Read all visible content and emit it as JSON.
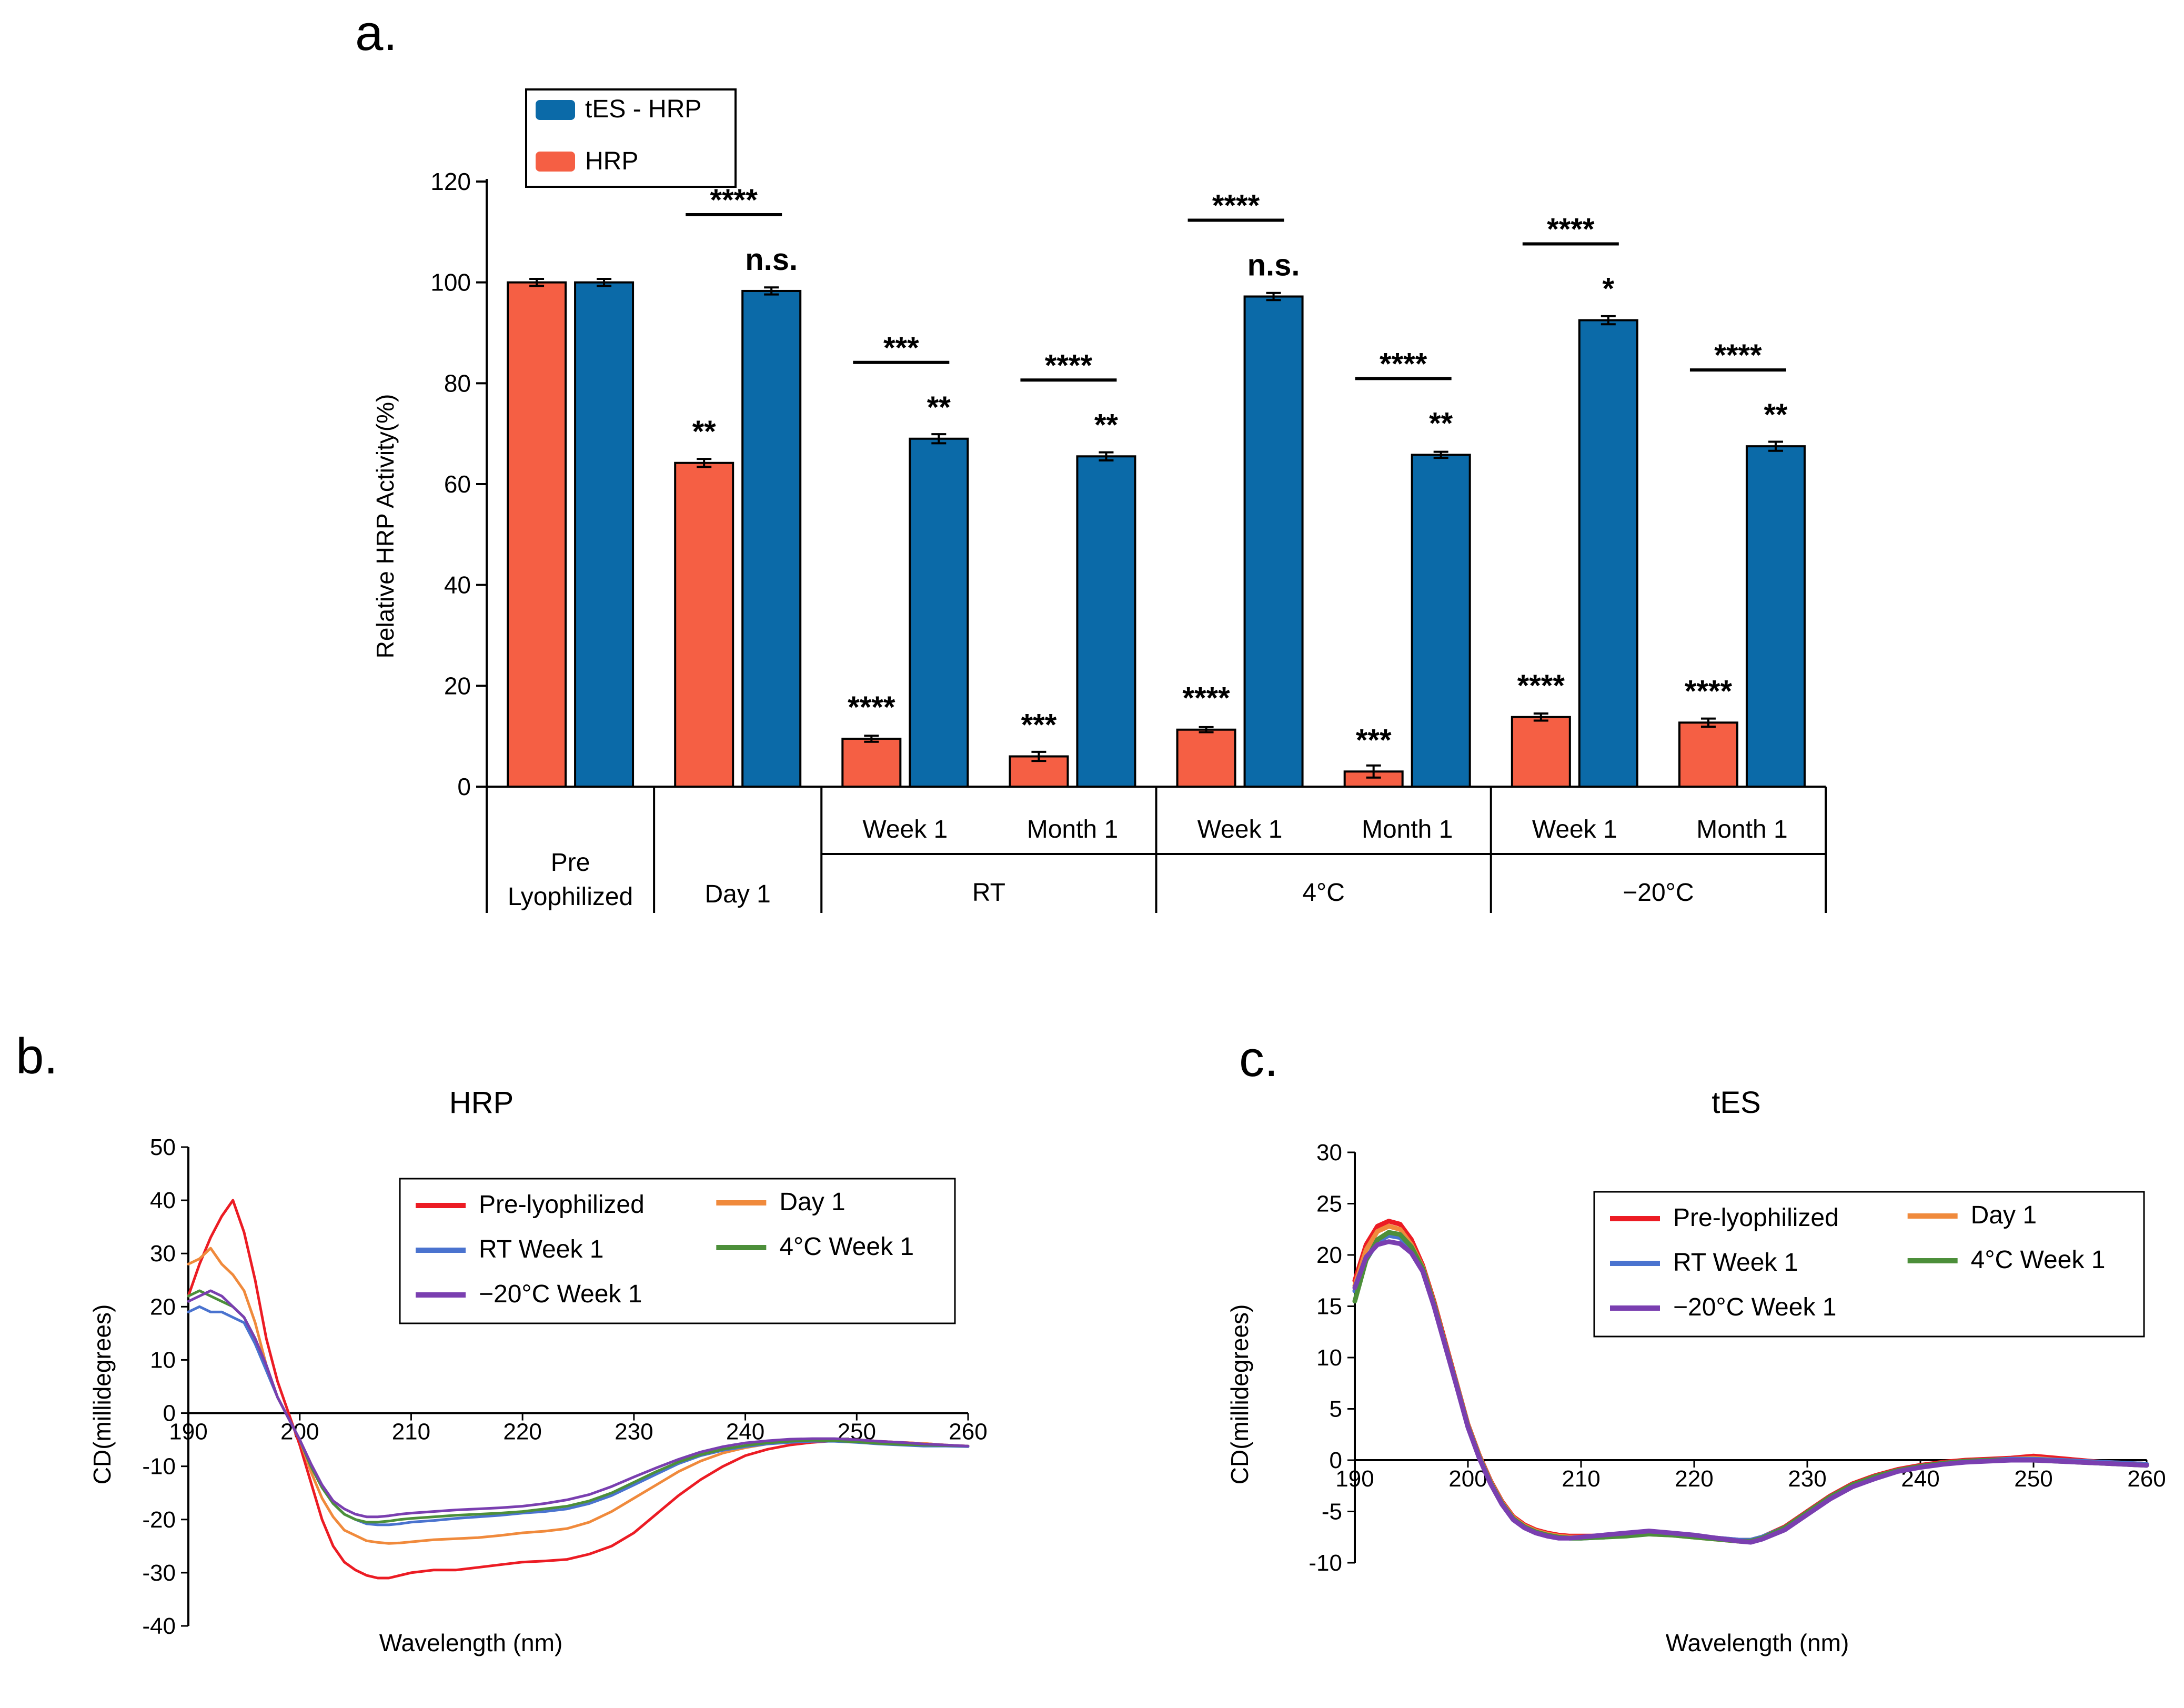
{
  "chart_data": [
    {
      "panel": "a.",
      "type": "bar",
      "title": "",
      "ylabel": "Relative HRP Activity(%)",
      "ylim": [
        0,
        120
      ],
      "yticks": [
        0,
        20,
        40,
        60,
        80,
        100,
        120
      ],
      "legend": {
        "placement": "top-left",
        "entries": [
          "tES - HRP",
          "HRP"
        ]
      },
      "series": [
        {
          "name": "tES - HRP",
          "color": "#0b6aa8",
          "values": [
            100,
            98.3,
            69,
            65.5,
            97.2,
            65.8,
            92.5,
            67.5
          ],
          "errors": [
            0.7,
            0.7,
            0.9,
            0.8,
            0.7,
            0.6,
            0.8,
            0.9
          ],
          "sig": [
            "",
            "n.s.",
            "**",
            "**",
            "n.s.",
            "**",
            "*",
            "**"
          ]
        },
        {
          "name": "HRP",
          "color": "#f55f44",
          "values": [
            100,
            64.2,
            9.5,
            6,
            11.3,
            3,
            13.8,
            12.7
          ],
          "errors": [
            0.7,
            0.8,
            0.6,
            0.9,
            0.5,
            1.2,
            0.7,
            0.8
          ],
          "sig": [
            "",
            "**",
            "****",
            "***",
            "****",
            "***",
            "****",
            "****"
          ]
        }
      ],
      "comparisons": [
        "",
        "****",
        "***",
        "****",
        "****",
        "****",
        "****",
        "****"
      ],
      "time_labels": [
        "",
        "",
        "Week 1",
        "Month 1",
        "Week 1",
        "Month 1",
        "Week 1",
        "Month 1"
      ],
      "groups": [
        "Pre Lyophilized",
        "Day 1",
        "RT",
        "4°C",
        "−20°C"
      ]
    },
    {
      "panel": "b.",
      "type": "line",
      "title": "HRP",
      "xlabel": "Wavelength (nm)",
      "ylabel": "CD(millidegrees)",
      "xlim": [
        190,
        260
      ],
      "ylim": [
        -40,
        50
      ],
      "xticks": [
        190,
        200,
        210,
        220,
        230,
        240,
        250,
        260
      ],
      "yticks": [
        -40,
        -30,
        -20,
        -10,
        0,
        10,
        20,
        30,
        40,
        50
      ],
      "legend": {
        "placement": "top-right",
        "entries": [
          "Pre-lyophilized",
          "Day 1",
          "RT Week 1",
          "4°C Week 1",
          "−20°C Week 1"
        ]
      },
      "x": [
        190,
        191,
        192,
        193,
        194,
        195,
        196,
        197,
        198,
        199,
        200,
        201,
        202,
        203,
        204,
        205,
        206,
        207,
        208,
        209,
        210,
        212,
        214,
        216,
        218,
        220,
        222,
        224,
        226,
        228,
        230,
        232,
        234,
        236,
        238,
        240,
        242,
        244,
        246,
        248,
        250,
        252,
        254,
        256,
        258,
        260
      ],
      "series": [
        {
          "name": "Pre-lyophilized",
          "color": "#ec1c24",
          "values": [
            22,
            28,
            33,
            37,
            40,
            34,
            25,
            14,
            6,
            0,
            -6,
            -13,
            -20,
            -25,
            -28,
            -29.5,
            -30.5,
            -31,
            -31,
            -30.5,
            -30,
            -29.5,
            -29.5,
            -29,
            -28.5,
            -28,
            -27.8,
            -27.5,
            -26.5,
            -25,
            -22.5,
            -19,
            -15.5,
            -12.5,
            -10,
            -8,
            -6.8,
            -6,
            -5.5,
            -5.2,
            -5,
            -5.3,
            -5.5,
            -5.7,
            -6,
            -6.2
          ]
        },
        {
          "name": "Day 1",
          "color": "#f08a3c",
          "values": [
            28,
            29,
            31,
            28,
            26,
            23,
            17,
            9,
            3,
            -1,
            -5,
            -11,
            -16,
            -19.5,
            -22,
            -23,
            -24,
            -24.3,
            -24.5,
            -24.4,
            -24.2,
            -23.8,
            -23.6,
            -23.4,
            -23,
            -22.5,
            -22.2,
            -21.7,
            -20.5,
            -18.5,
            -16,
            -13.5,
            -11,
            -9,
            -7.5,
            -6.5,
            -5.8,
            -5.3,
            -5,
            -4.9,
            -5,
            -5.3,
            -5.5,
            -5.7,
            -6,
            -6.2
          ]
        },
        {
          "name": "RT Week 1",
          "color": "#4a73cf",
          "values": [
            19,
            20,
            19,
            19,
            18,
            17,
            13,
            8,
            3,
            -1,
            -5,
            -10,
            -14,
            -17,
            -19,
            -20,
            -20.8,
            -21,
            -21,
            -20.8,
            -20.5,
            -20.2,
            -19.8,
            -19.5,
            -19.2,
            -18.8,
            -18.5,
            -18,
            -17,
            -15.5,
            -13.5,
            -11.5,
            -9.5,
            -8,
            -7,
            -6.3,
            -5.8,
            -5.5,
            -5.3,
            -5.3,
            -5.5,
            -5.8,
            -6,
            -6.2,
            -6.2,
            -6.3
          ]
        },
        {
          "name": "4°C Week 1",
          "color": "#4c8f3a",
          "values": [
            22,
            23,
            22,
            21,
            20,
            18,
            14,
            9,
            3,
            -1,
            -5,
            -10,
            -14,
            -17,
            -19,
            -20,
            -20.5,
            -20.5,
            -20.3,
            -20,
            -19.8,
            -19.5,
            -19.2,
            -19,
            -18.8,
            -18.5,
            -18,
            -17.5,
            -16.5,
            -15,
            -13,
            -11,
            -9.2,
            -7.8,
            -6.8,
            -6.1,
            -5.6,
            -5.3,
            -5.1,
            -5.2,
            -5.4,
            -5.7,
            -5.9,
            -6,
            -6.1,
            -6.2
          ]
        },
        {
          "name": "−20°C Week 1",
          "color": "#7a3fb0",
          "values": [
            21,
            22,
            23,
            22,
            20,
            18,
            14,
            9,
            3,
            -1,
            -5,
            -9.5,
            -13.5,
            -16.5,
            -18,
            -19,
            -19.5,
            -19.5,
            -19.3,
            -19,
            -18.8,
            -18.5,
            -18.2,
            -18,
            -17.8,
            -17.5,
            -17,
            -16.3,
            -15.3,
            -13.8,
            -12,
            -10.3,
            -8.7,
            -7.3,
            -6.3,
            -5.6,
            -5.2,
            -4.9,
            -4.8,
            -4.8,
            -5,
            -5.3,
            -5.5,
            -5.8,
            -6,
            -6.2
          ]
        }
      ]
    },
    {
      "panel": "c.",
      "type": "line",
      "title": "tES",
      "xlabel": "Wavelength (nm)",
      "ylabel": "CD(millidegrees)",
      "xlim": [
        190,
        260
      ],
      "ylim": [
        -10,
        30
      ],
      "xticks": [
        190,
        200,
        210,
        220,
        230,
        240,
        250,
        260
      ],
      "yticks": [
        -10,
        -5,
        0,
        5,
        10,
        15,
        20,
        25,
        30
      ],
      "legend": {
        "placement": "top-right",
        "entries": [
          "Pre-lyophilized",
          "Day 1",
          "RT Week 1",
          "4°C Week 1",
          "−20°C Week 1"
        ]
      },
      "x": [
        190,
        191,
        192,
        193,
        194,
        195,
        196,
        197,
        198,
        199,
        200,
        201,
        202,
        203,
        204,
        205,
        206,
        207,
        208,
        209,
        210,
        212,
        214,
        216,
        218,
        220,
        222,
        224,
        225,
        226,
        228,
        230,
        232,
        234,
        236,
        238,
        240,
        242,
        244,
        246,
        248,
        250,
        252,
        254,
        256,
        258,
        260
      ],
      "series": [
        {
          "name": "Pre-lyophilized",
          "color": "#ec1c24",
          "values": [
            17.5,
            21,
            22.8,
            23.3,
            23,
            21.5,
            19,
            15.5,
            11.5,
            7.5,
            3.5,
            0.5,
            -2,
            -4,
            -5.5,
            -6.3,
            -6.8,
            -7.1,
            -7.3,
            -7.4,
            -7.4,
            -7.4,
            -7.2,
            -7.1,
            -7.2,
            -7.4,
            -7.6,
            -7.8,
            -7.8,
            -7.5,
            -6.5,
            -5,
            -3.5,
            -2.3,
            -1.5,
            -0.9,
            -0.5,
            -0.2,
            0,
            0.1,
            0.2,
            0.4,
            0.2,
            0,
            -0.2,
            -0.3,
            -0.4
          ]
        },
        {
          "name": "Day 1",
          "color": "#f08a3c",
          "values": [
            17,
            20.5,
            22.3,
            22.8,
            22.5,
            21,
            18.8,
            15.3,
            11.3,
            7.4,
            3.4,
            0.4,
            -2.1,
            -4.1,
            -5.6,
            -6.4,
            -6.9,
            -7.2,
            -7.4,
            -7.5,
            -7.5,
            -7.5,
            -7.3,
            -7.2,
            -7.3,
            -7.5,
            -7.7,
            -7.9,
            -7.9,
            -7.6,
            -6.6,
            -5.1,
            -3.6,
            -2.4,
            -1.6,
            -1,
            -0.6,
            -0.3,
            -0.1,
            0,
            0.1,
            0.2,
            0,
            -0.2,
            -0.3,
            -0.4,
            -0.5
          ]
        },
        {
          "name": "RT Week 1",
          "color": "#4a73cf",
          "values": [
            16.5,
            19.5,
            21.3,
            21.9,
            21.7,
            20.5,
            18.5,
            15.1,
            11.2,
            7.3,
            3.3,
            0.3,
            -2.2,
            -4.2,
            -5.7,
            -6.5,
            -7,
            -7.3,
            -7.5,
            -7.6,
            -7.6,
            -7.5,
            -7.3,
            -7.1,
            -7.2,
            -7.4,
            -7.6,
            -7.8,
            -7.8,
            -7.5,
            -6.6,
            -5.1,
            -3.6,
            -2.4,
            -1.6,
            -1,
            -0.6,
            -0.3,
            -0.1,
            0,
            0.1,
            0.1,
            0,
            -0.1,
            -0.2,
            -0.3,
            -0.4
          ]
        },
        {
          "name": "4°C Week 1",
          "color": "#4c8f3a",
          "values": [
            15.5,
            19.5,
            21.5,
            22.2,
            22,
            20.8,
            18.7,
            15.2,
            11.2,
            7.3,
            3.3,
            0.3,
            -2.2,
            -4.2,
            -5.7,
            -6.5,
            -7,
            -7.3,
            -7.5,
            -7.6,
            -7.6,
            -7.5,
            -7.4,
            -7.2,
            -7.3,
            -7.5,
            -7.7,
            -7.9,
            -7.9,
            -7.6,
            -6.6,
            -5.1,
            -3.6,
            -2.4,
            -1.6,
            -1,
            -0.6,
            -0.3,
            -0.1,
            0,
            0,
            0,
            -0.1,
            -0.2,
            -0.3,
            -0.4,
            -0.5
          ]
        },
        {
          "name": "−20°C Week 1",
          "color": "#7a3fb0",
          "values": [
            16.8,
            19.8,
            21,
            21.3,
            21.1,
            20.2,
            18.4,
            15,
            11.1,
            7.2,
            3.2,
            0.2,
            -2.3,
            -4.3,
            -5.8,
            -6.6,
            -7.1,
            -7.4,
            -7.6,
            -7.6,
            -7.5,
            -7.3,
            -7.1,
            -6.9,
            -7.1,
            -7.3,
            -7.6,
            -7.9,
            -8,
            -7.7,
            -6.8,
            -5.3,
            -3.8,
            -2.6,
            -1.8,
            -1.1,
            -0.7,
            -0.4,
            -0.2,
            -0.1,
            0,
            0,
            -0.1,
            -0.2,
            -0.3,
            -0.4,
            -0.5
          ]
        }
      ]
    }
  ]
}
